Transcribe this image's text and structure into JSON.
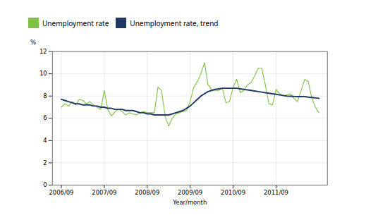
{
  "chart_data": {
    "type": "line",
    "xlabel": "Year/month",
    "ylabel": "%",
    "categories": [
      "2006/09",
      null,
      null,
      null,
      null,
      null,
      null,
      null,
      null,
      null,
      null,
      null,
      "2007/09",
      null,
      null,
      null,
      null,
      null,
      null,
      null,
      null,
      null,
      null,
      null,
      "2008/09",
      null,
      null,
      null,
      null,
      null,
      null,
      null,
      null,
      null,
      null,
      null,
      "2009/09",
      null,
      null,
      null,
      null,
      null,
      null,
      null,
      null,
      null,
      null,
      null,
      "2010/09",
      null,
      null,
      null,
      null,
      null,
      null,
      null,
      null,
      null,
      null,
      null,
      "2011/09",
      null,
      null,
      null,
      null,
      null,
      null,
      null,
      null,
      null,
      null,
      null,
      null
    ],
    "series": [
      {
        "name": "Unemployment rate",
        "color": "#7dc242",
        "values": [
          7.0,
          7.3,
          7.1,
          7.5,
          7.2,
          7.7,
          7.6,
          7.3,
          7.5,
          7.2,
          7.0,
          6.8,
          8.5,
          6.8,
          6.2,
          6.6,
          6.8,
          6.6,
          6.3,
          6.5,
          6.4,
          6.3,
          6.5,
          6.6,
          6.5,
          6.5,
          6.5,
          8.8,
          8.5,
          6.2,
          5.3,
          6.0,
          6.4,
          6.5,
          6.6,
          6.7,
          7.5,
          8.8,
          9.3,
          10.0,
          11.0,
          9.0,
          8.6,
          8.5,
          8.5,
          8.7,
          7.4,
          7.5,
          8.8,
          9.5,
          8.3,
          8.5,
          9.0,
          9.2,
          9.8,
          10.5,
          10.5,
          9.0,
          7.3,
          7.2,
          8.6,
          8.2,
          8.0,
          8.1,
          8.2,
          7.8,
          7.5,
          8.5,
          9.5,
          9.3,
          7.8,
          7.0,
          6.5
        ]
      },
      {
        "name": "Unemployment rate, trend",
        "color": "#1f3864",
        "values": [
          7.7,
          7.6,
          7.5,
          7.4,
          7.3,
          7.3,
          7.2,
          7.2,
          7.2,
          7.1,
          7.1,
          7.0,
          7.0,
          6.9,
          6.9,
          6.8,
          6.8,
          6.8,
          6.7,
          6.7,
          6.7,
          6.6,
          6.5,
          6.5,
          6.4,
          6.4,
          6.3,
          6.3,
          6.3,
          6.3,
          6.3,
          6.4,
          6.5,
          6.6,
          6.7,
          6.9,
          7.1,
          7.4,
          7.7,
          8.0,
          8.2,
          8.4,
          8.5,
          8.6,
          8.65,
          8.7,
          8.7,
          8.7,
          8.7,
          8.7,
          8.65,
          8.6,
          8.55,
          8.5,
          8.45,
          8.4,
          8.35,
          8.3,
          8.25,
          8.2,
          8.15,
          8.1,
          8.05,
          8.0,
          7.98,
          7.96,
          7.95,
          7.95,
          7.95,
          7.9,
          7.87,
          7.83,
          7.8
        ]
      }
    ],
    "ylim": [
      0,
      12
    ],
    "yticks": [
      0,
      2,
      4,
      6,
      8,
      10,
      12
    ],
    "grid": true
  }
}
